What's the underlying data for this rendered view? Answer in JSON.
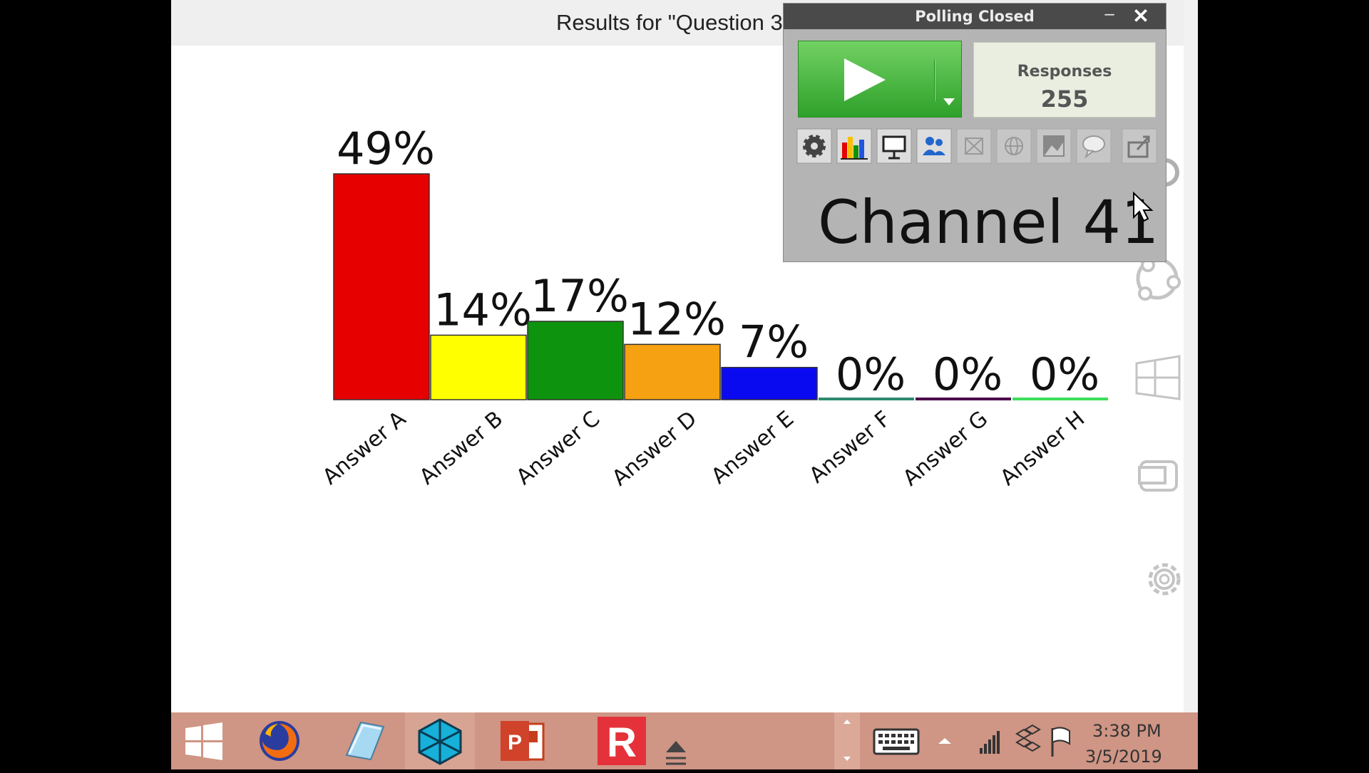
{
  "results_title": "Results for \"Question 3",
  "chart_data": {
    "type": "bar",
    "categories": [
      "Answer A",
      "Answer B",
      "Answer C",
      "Answer D",
      "Answer E",
      "Answer F",
      "Answer G",
      "Answer H"
    ],
    "values": [
      49,
      14,
      17,
      12,
      7,
      0,
      0,
      0
    ],
    "data_labels": [
      "49%",
      "14%",
      "17%",
      "12%",
      "7%",
      "0%",
      "0%",
      "0%"
    ],
    "colors": [
      "#e60000",
      "#ffff00",
      "#0d930d",
      "#f5a111",
      "#0a0af0",
      "#2e8b6e",
      "#4b0a4b",
      "#3cde5a"
    ],
    "ylim": [
      0,
      49
    ],
    "grid": false,
    "legend": "none"
  },
  "polling": {
    "title": "Polling Closed",
    "minimize": "–",
    "close": "✕",
    "responses_label": "Responses",
    "responses_count": "255",
    "channel": "Channel 41",
    "toolbar_icons": [
      "gear-icon",
      "bar-chart-icon",
      "presentation-icon",
      "participants-icon",
      "grid-icon",
      "globe-icon",
      "image-icon",
      "speech-bubble-icon",
      "export-icon"
    ]
  },
  "side_icons": [
    "magnifier-icon",
    "circles-icon",
    "windows-tiles-icon",
    "screen-share-icon",
    "settings-gear-icon"
  ],
  "taskbar": {
    "apps": [
      "windows-start-icon",
      "firefox-icon",
      "notebook-icon",
      "cube-app-icon",
      "powerpoint-icon",
      "response-r-icon",
      "tray-eject-icon"
    ],
    "clock_time": "3:38 PM",
    "clock_date": "3/5/2019"
  }
}
